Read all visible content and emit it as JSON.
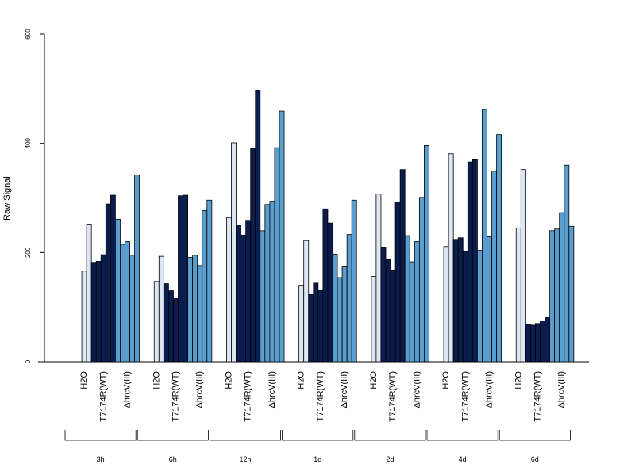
{
  "chart_data": {
    "type": "bar",
    "title": "",
    "ylabel": "Raw Signal",
    "xlabel": "",
    "ylim": [
      0,
      600
    ],
    "y_ticks": [
      0,
      200,
      400,
      600
    ],
    "grid": false,
    "legend": "none",
    "colors": {
      "H2O": "#dde7f3",
      "T7174R(WT)": "#0b1d4f",
      "ΔhrcV(III)": "#5a9ecf",
      "axis": "#000000"
    },
    "treatment_labels": [
      "H2O",
      "T7174R(WT)",
      "ΔhrcV(III)"
    ],
    "groups": [
      {
        "time": "3h",
        "H2O": [
          0,
          166,
          252
        ],
        "T7174R(WT)": [
          182,
          184,
          196,
          289,
          305
        ],
        "ΔhrcV(III)": [
          261,
          215,
          220,
          195,
          342
        ]
      },
      {
        "time": "6h",
        "H2O": [
          0,
          147,
          193
        ],
        "T7174R(WT)": [
          143,
          130,
          117,
          304,
          305
        ],
        "ΔhrcV(III)": [
          191,
          195,
          176,
          277,
          296
        ]
      },
      {
        "time": "12h",
        "H2O": [
          0,
          264,
          401
        ],
        "T7174R(WT)": [
          250,
          232,
          259,
          391,
          497
        ],
        "ΔhrcV(III)": [
          240,
          288,
          294,
          392,
          459
        ]
      },
      {
        "time": "1d",
        "H2O": [
          0,
          140,
          222
        ],
        "T7174R(WT)": [
          124,
          144,
          131,
          280,
          254
        ],
        "ΔhrcV(III)": [
          197,
          154,
          175,
          233,
          296
        ]
      },
      {
        "time": "2d",
        "H2O": [
          0,
          156,
          307
        ],
        "T7174R(WT)": [
          210,
          187,
          168,
          293,
          352
        ],
        "ΔhrcV(III)": [
          231,
          183,
          220,
          301,
          396
        ]
      },
      {
        "time": "4d",
        "H2O": [
          0,
          211,
          381
        ],
        "T7174R(WT)": [
          224,
          227,
          202,
          366,
          370
        ],
        "ΔhrcV(III)": [
          204,
          462,
          229,
          349,
          416
        ]
      },
      {
        "time": "6d",
        "H2O": [
          0,
          245,
          352
        ],
        "T7174R(WT)": [
          68,
          67,
          70,
          75,
          82
        ],
        "ΔhrcV(III)": [
          240,
          243,
          273,
          360,
          248
        ]
      }
    ]
  }
}
